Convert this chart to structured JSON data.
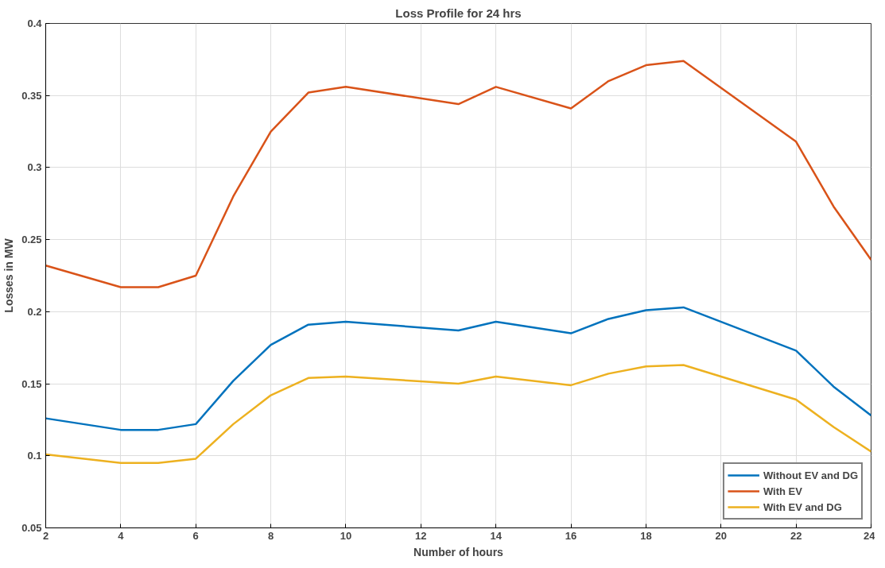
{
  "chart_data": {
    "type": "line",
    "title": "Loss Profile for 24 hrs",
    "xlabel": "Number of hours",
    "ylabel": "Losses in MW",
    "x": [
      2,
      4,
      5,
      6,
      7,
      8,
      9,
      10,
      13,
      14,
      16,
      17,
      18,
      19,
      22,
      23,
      24
    ],
    "series": [
      {
        "name": "Without EV and DG",
        "color": "#0072bd",
        "values": [
          0.126,
          0.118,
          0.118,
          0.122,
          0.152,
          0.177,
          0.191,
          0.193,
          0.187,
          0.193,
          0.185,
          0.195,
          0.201,
          0.203,
          0.173,
          0.148,
          0.128
        ]
      },
      {
        "name": "With EV",
        "color": "#d95319",
        "values": [
          0.232,
          0.217,
          0.217,
          0.225,
          0.28,
          0.325,
          0.352,
          0.356,
          0.344,
          0.356,
          0.341,
          0.36,
          0.371,
          0.374,
          0.318,
          0.273,
          0.236
        ]
      },
      {
        "name": "With EV and DG",
        "color": "#edb120",
        "values": [
          0.101,
          0.095,
          0.095,
          0.098,
          0.122,
          0.142,
          0.154,
          0.155,
          0.15,
          0.155,
          0.149,
          0.157,
          0.162,
          0.163,
          0.139,
          0.12,
          0.103
        ]
      }
    ],
    "xlim": [
      2,
      24
    ],
    "xticks": [
      2,
      4,
      6,
      8,
      10,
      12,
      14,
      16,
      18,
      20,
      22,
      24
    ],
    "ylim": [
      0.05,
      0.4
    ],
    "yticks": [
      0.05,
      0.1,
      0.15,
      0.2,
      0.25,
      0.3,
      0.35,
      0.4
    ],
    "grid": true,
    "legend": "bottom right",
    "line_style": "solid",
    "marker": "none"
  }
}
